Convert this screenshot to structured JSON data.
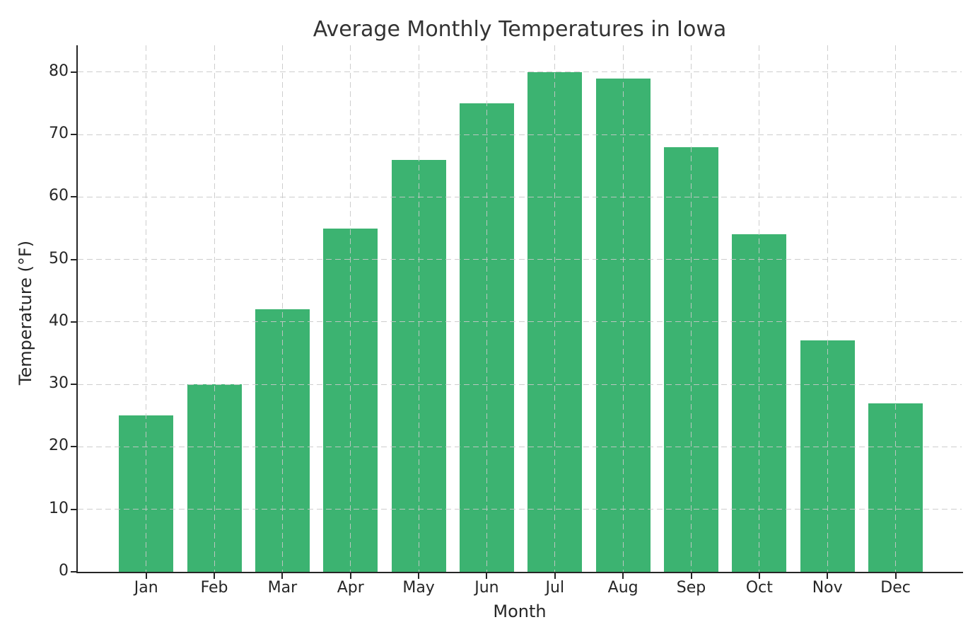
{
  "chart_data": {
    "type": "bar",
    "title": "Average Monthly Temperatures in Iowa",
    "xlabel": "Month",
    "ylabel": "Temperature (°F)",
    "categories": [
      "Jan",
      "Feb",
      "Mar",
      "Apr",
      "May",
      "Jun",
      "Jul",
      "Aug",
      "Sep",
      "Oct",
      "Nov",
      "Dec"
    ],
    "values": [
      25,
      30,
      42,
      55,
      66,
      75,
      80,
      79,
      68,
      54,
      37,
      27
    ],
    "yticks": [
      0,
      10,
      20,
      30,
      40,
      50,
      60,
      70,
      80
    ],
    "ylim": [
      0,
      84.3
    ],
    "grid": "both, dashed, drawn above bars",
    "legend": "none",
    "colors": {
      "bar": "#3CB371",
      "axis": "#262626",
      "grid": "#c8c8c8",
      "title_text": "#333333",
      "background": "#ffffff"
    }
  }
}
